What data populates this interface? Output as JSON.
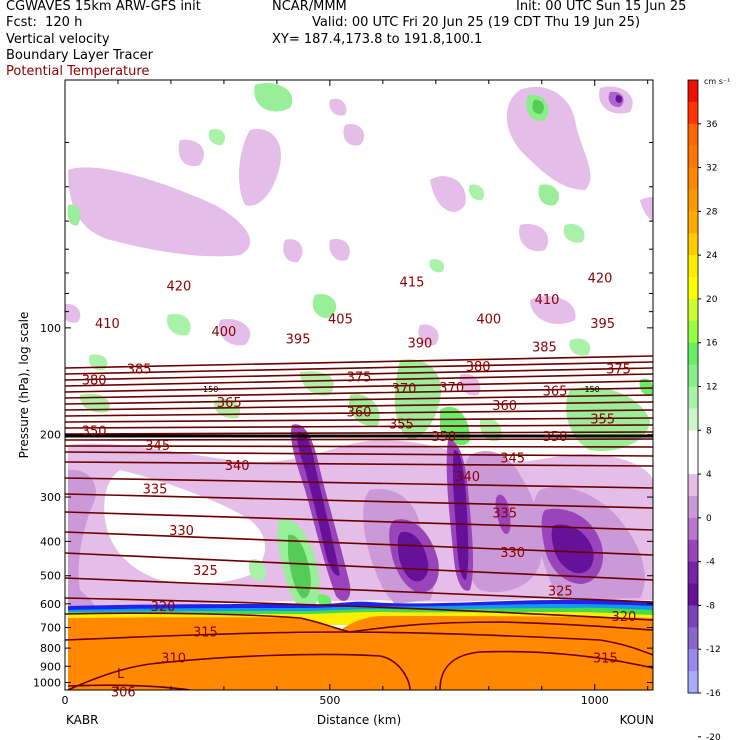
{
  "header": {
    "model": "CGWAVES 15km ARW-GFS init",
    "org": "NCAR/MMM",
    "init": "Init: 00 UTC Sun 15 Jun 25",
    "fcst": "Fcst:  120 h",
    "valid": "Valid: 00 UTC Fri 20 Jun 25 (19 CDT Thu 19 Jun 25)",
    "field1": "Vertical velocity",
    "xy": "XY= 187.4,173.8 to 191.8,100.1",
    "field2": "Boundary Layer Tracer",
    "field3": "Potential Temperature"
  },
  "colors": {
    "theta_line": "#6b0000",
    "theta_text": "#8b0000"
  },
  "chart_data": {
    "type": "heatmap",
    "xlabel": "Distance (km)",
    "ylabel": "Pressure (hPa), log scale",
    "xlim": [
      0,
      1110
    ],
    "ylim": [
      1050,
      20
    ],
    "y_scale": "log",
    "x_ticks": [
      "0",
      "500",
      "1000"
    ],
    "x_tick_values": [
      0,
      500,
      1000
    ],
    "y_ticks": [
      "100",
      "200",
      "300",
      "400",
      "500",
      "600",
      "700",
      "800",
      "900",
      "1000"
    ],
    "y_tick_values": [
      100,
      200,
      300,
      400,
      500,
      600,
      700,
      800,
      900,
      1000
    ],
    "endpoints": {
      "left": "KABR",
      "right": "KOUN"
    },
    "colorbar": {
      "unit": "cm s⁻¹",
      "levels": [
        "36",
        "32",
        "28",
        "24",
        "20",
        "16",
        "12",
        "8",
        "4",
        "0",
        "-4",
        "-8",
        "-12",
        "-16",
        "-20"
      ],
      "colors": [
        "#ee1100",
        "#ff3300",
        "#ff6600",
        "#ff7700",
        "#ff8800",
        "#ff9900",
        "#ffaa00",
        "#ffcc00",
        "#ffee00",
        "#ffff00",
        "#ccff33",
        "#99ff44",
        "#66ee66",
        "#88ee88",
        "#aaf2aa",
        "#ccf7cc",
        "#ffffff",
        "#ffffff",
        "#e4bde8",
        "#cc99d8",
        "#b877cc",
        "#9944bb",
        "#7722aa",
        "#661199",
        "#7744bb",
        "#8866cc",
        "#9988ee",
        "#aaaaff"
      ]
    },
    "theta_labels": [
      {
        "text": "420",
        "x": 215,
        "p": 76
      },
      {
        "text": "415",
        "x": 655,
        "p": 74
      },
      {
        "text": "420",
        "x": 1010,
        "p": 72
      },
      {
        "text": "410",
        "x": 80,
        "p": 97
      },
      {
        "text": "400",
        "x": 300,
        "p": 102
      },
      {
        "text": "405",
        "x": 520,
        "p": 94
      },
      {
        "text": "400",
        "x": 800,
        "p": 94
      },
      {
        "text": "410",
        "x": 910,
        "p": 83
      },
      {
        "text": "395",
        "x": 1015,
        "p": 97
      },
      {
        "text": "395",
        "x": 440,
        "p": 107
      },
      {
        "text": "390",
        "x": 670,
        "p": 110
      },
      {
        "text": "385",
        "x": 140,
        "p": 130
      },
      {
        "text": "380",
        "x": 780,
        "p": 128
      },
      {
        "text": "385",
        "x": 905,
        "p": 113
      },
      {
        "text": "375",
        "x": 1045,
        "p": 130
      },
      {
        "text": "380",
        "x": 55,
        "p": 140
      },
      {
        "text": "375",
        "x": 555,
        "p": 137
      },
      {
        "text": "370",
        "x": 640,
        "p": 148
      },
      {
        "text": "370",
        "x": 730,
        "p": 147
      },
      {
        "text": "365",
        "x": 925,
        "p": 150
      },
      {
        "text": "360",
        "x": 555,
        "p": 172
      },
      {
        "text": "360",
        "x": 830,
        "p": 165
      },
      {
        "text": "365",
        "x": 310,
        "p": 162
      },
      {
        "text": "355",
        "x": 635,
        "p": 186
      },
      {
        "text": "355",
        "x": 1015,
        "p": 180
      },
      {
        "text": "350",
        "x": 55,
        "p": 195
      },
      {
        "text": "350",
        "x": 715,
        "p": 202
      },
      {
        "text": "350",
        "x": 925,
        "p": 202
      },
      {
        "text": "345",
        "x": 175,
        "p": 214
      },
      {
        "text": "345",
        "x": 845,
        "p": 232
      },
      {
        "text": "340",
        "x": 325,
        "p": 244
      },
      {
        "text": "340",
        "x": 760,
        "p": 262
      },
      {
        "text": "335",
        "x": 170,
        "p": 284
      },
      {
        "text": "335",
        "x": 830,
        "p": 332
      },
      {
        "text": "330",
        "x": 220,
        "p": 372
      },
      {
        "text": "330",
        "x": 845,
        "p": 428
      },
      {
        "text": "325",
        "x": 265,
        "p": 482
      },
      {
        "text": "325",
        "x": 935,
        "p": 550
      },
      {
        "text": "320",
        "x": 185,
        "p": 608
      },
      {
        "text": "320",
        "x": 1055,
        "p": 650
      },
      {
        "text": "315",
        "x": 265,
        "p": 718
      },
      {
        "text": "315",
        "x": 1020,
        "p": 850
      },
      {
        "text": "310",
        "x": 205,
        "p": 850
      },
      {
        "text": "306",
        "x": 110,
        "p": 1060
      }
    ],
    "tropopause_marks": [
      {
        "text": "150",
        "x": 275,
        "p": 148
      },
      {
        "text": "150",
        "x": 995,
        "p": 148
      }
    ],
    "low_label": {
      "text": "L",
      "x": 105,
      "p": 940
    }
  }
}
